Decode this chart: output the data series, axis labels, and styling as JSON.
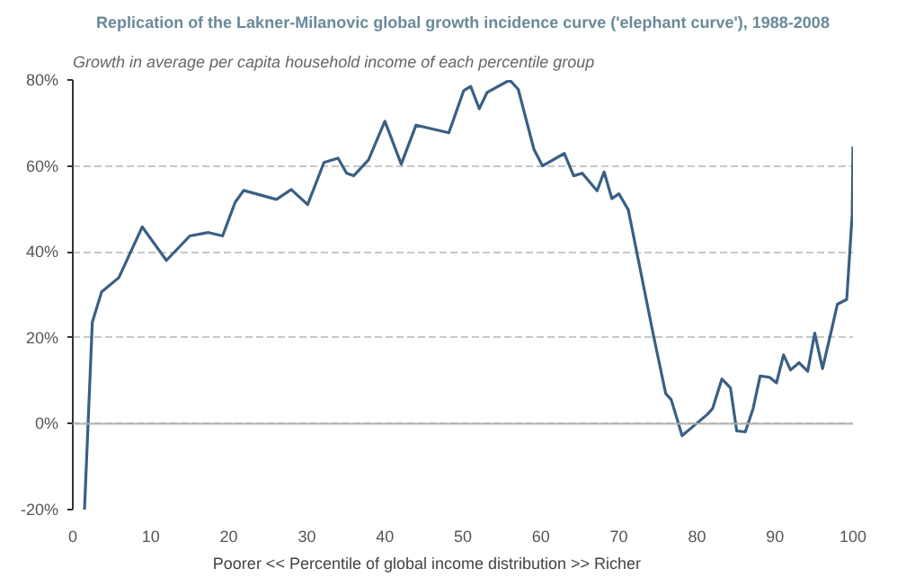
{
  "chart_data": {
    "type": "line",
    "title": "Replication of the Lakner-Milanovic global growth incidence curve ('elephant curve'), 1988-2008",
    "ylabel": "Growth in average per capita household income of each percentile group",
    "xlabel": "Poorer     <<     Percentile of global income distribution     >>     Richer",
    "xlim": [
      0,
      100
    ],
    "xticks": [
      0,
      10,
      20,
      30,
      40,
      50,
      60,
      70,
      80,
      90,
      100
    ],
    "ylim": [
      -20,
      80
    ],
    "yticks": [
      {
        "value": -20,
        "label": "-20%"
      },
      {
        "value": 0,
        "label": "0%"
      },
      {
        "value": 20,
        "label": "20%"
      },
      {
        "value": 40,
        "label": "40%"
      },
      {
        "value": 60,
        "label": "60%"
      },
      {
        "value": 80,
        "label": "80%"
      }
    ],
    "grid": "y",
    "line_style": "solid",
    "ref_lines": [
      {
        "axis": "y",
        "value": 0,
        "color": "#b0b0b0",
        "line_style": "solid"
      }
    ],
    "series": [
      {
        "color": "#3a5f85",
        "x": [
          1.5,
          2.5,
          3.7,
          5.9,
          8.9,
          12,
          15,
          17.4,
          19.2,
          20.8,
          21.9,
          26.1,
          28,
          30.1,
          32.2,
          34,
          35.1,
          36,
          37.9,
          40,
          42.1,
          44,
          48.2,
          50.1,
          51,
          52.1,
          53.1,
          56,
          57.1,
          59.1,
          60.2,
          63,
          64.2,
          65.3,
          67.2,
          68.1,
          69.1,
          70,
          71.2,
          74.4,
          76,
          76.7,
          78.1,
          79,
          81.3,
          82,
          83.2,
          84.3,
          85.1,
          86.2,
          87.2,
          88.1,
          89.3,
          90.2,
          91.1,
          92,
          93.1,
          94.2,
          95.1,
          96.1,
          97.3,
          98,
          99.2,
          99.9,
          100
        ],
        "values": [
          -20,
          23.6,
          30.7,
          34,
          45.8,
          38,
          43.7,
          44.5,
          43.7,
          51.5,
          54.3,
          52.2,
          54.5,
          51,
          60.8,
          61.8,
          58.3,
          57.7,
          61.4,
          70.4,
          60.4,
          69.5,
          67.7,
          77.5,
          78.5,
          73.3,
          77.1,
          80,
          77.8,
          63.9,
          60,
          62.9,
          57.7,
          58.3,
          54.2,
          58.6,
          52.4,
          53.5,
          49.8,
          20.8,
          7,
          5.6,
          -2.8,
          -1.4,
          2.1,
          3.5,
          10.4,
          8.3,
          -1.7,
          -1.9,
          3.5,
          11.1,
          10.8,
          9.5,
          16,
          12.5,
          14.2,
          12.2,
          21.1,
          12.8,
          22.2,
          27.8,
          28.9,
          48.6,
          64.5
        ]
      }
    ]
  }
}
